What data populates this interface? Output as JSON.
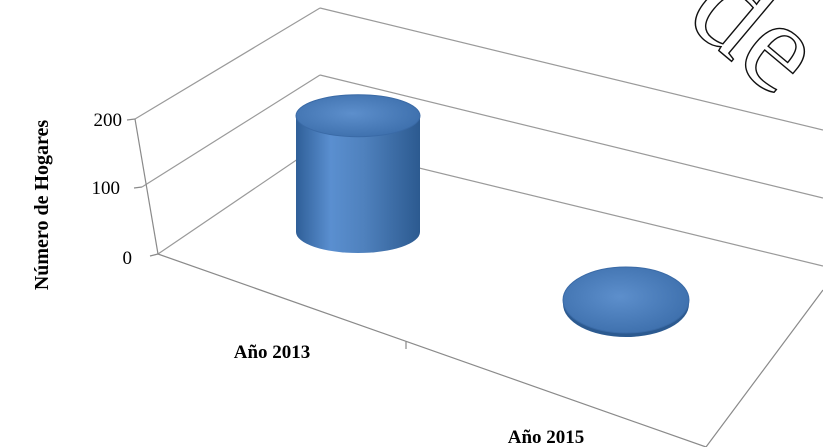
{
  "chart_data": {
    "type": "bar",
    "categories": [
      "Año 2013",
      "Año 2015"
    ],
    "values": [
      171,
      0
    ],
    "ylabel": "Número de Hogares",
    "xlabel": "",
    "title": "",
    "ylim": [
      0,
      200
    ],
    "yticks": [
      "0",
      "100",
      "200"
    ],
    "bar_color": "#4f81bd",
    "grid": true
  },
  "watermark": "de"
}
